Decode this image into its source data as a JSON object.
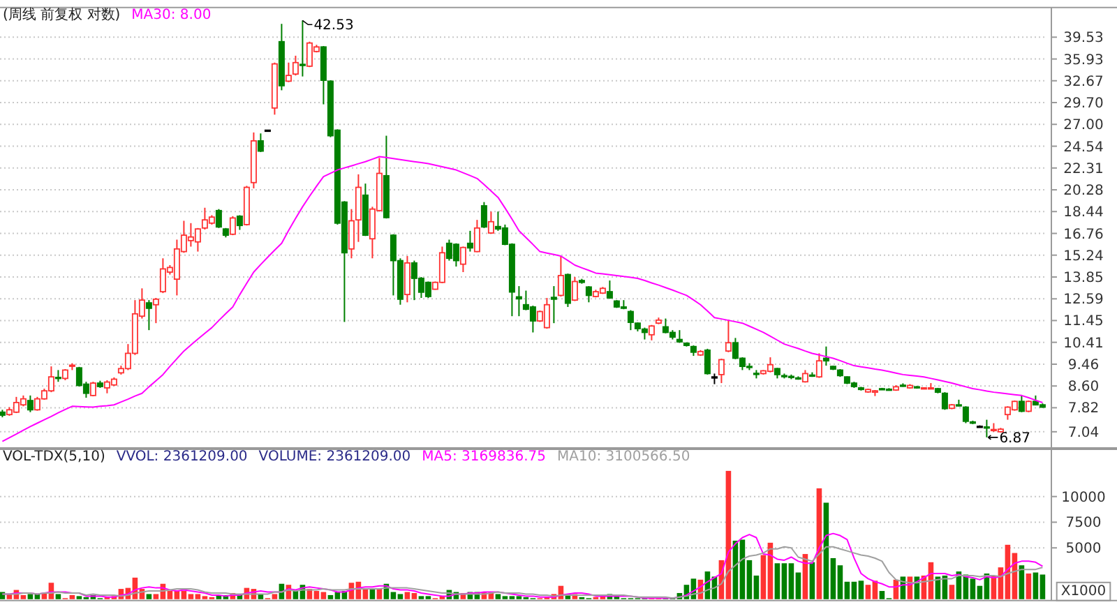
{
  "chart_data": [
    {
      "type": "candlestick",
      "title": "(周线 前复权 对数)",
      "log": "y",
      "grid": "y",
      "legend": "top left",
      "ylim": [
        6.6,
        45
      ],
      "yticks": [
        7.04,
        7.82,
        {
          "value": 8.6,
          "label": "8.60"
        },
        9.46,
        10.41,
        11.45,
        12.59,
        13.85,
        15.24,
        16.76,
        18.44,
        20.28,
        22.31,
        24.54,
        {
          "value": 27,
          "label": "27.00"
        },
        {
          "value": 29.7,
          "label": "29.70"
        },
        32.67,
        35.93,
        39.53
      ],
      "annotations": [
        "42.53",
        "6.87"
      ],
      "categories": [
        null,
        null,
        null,
        null,
        null,
        null,
        null,
        null,
        null,
        null,
        null,
        null,
        null,
        null,
        null,
        null,
        null,
        null,
        null,
        null,
        null,
        null,
        null,
        null,
        null,
        null,
        null,
        null,
        null,
        null,
        null,
        null,
        null,
        null,
        null,
        null,
        null,
        null,
        null,
        null,
        null,
        null,
        null,
        null,
        null,
        null,
        null,
        null,
        null,
        null,
        null,
        null,
        null,
        null,
        null,
        null,
        null,
        null,
        null,
        null,
        null,
        null,
        null,
        null,
        null,
        null,
        null,
        null,
        null,
        null,
        null,
        null,
        null,
        null,
        null,
        null,
        null,
        null,
        null,
        null,
        null,
        null,
        null,
        null,
        null,
        null,
        null,
        null,
        null,
        null,
        null,
        null,
        null,
        null,
        null,
        null,
        null,
        null,
        null,
        null,
        null,
        null,
        null,
        null,
        null,
        null,
        null,
        null,
        null,
        null,
        null,
        null,
        null,
        null,
        null,
        null,
        null,
        null,
        null,
        null,
        null,
        null,
        null,
        null,
        null,
        null,
        null,
        null,
        null,
        null,
        null,
        null,
        null,
        null,
        null,
        null,
        null,
        null,
        null,
        null,
        null,
        null,
        null,
        null,
        null,
        null,
        null,
        null,
        null,
        null
      ],
      "ohlc": [
        [
          7.67,
          7.75,
          7.5,
          7.57
        ],
        [
          7.59,
          7.84,
          7.55,
          7.75
        ],
        [
          7.67,
          8.2,
          7.64,
          8.0
        ],
        [
          7.92,
          8.25,
          7.87,
          8.13
        ],
        [
          8.07,
          8.25,
          7.67,
          7.75
        ],
        [
          7.75,
          8.2,
          7.72,
          8.13
        ],
        [
          8.13,
          8.5,
          8.1,
          8.42
        ],
        [
          8.42,
          9.37,
          8.37,
          8.95
        ],
        [
          8.93,
          9.22,
          8.76,
          8.89
        ],
        [
          8.89,
          9.26,
          8.82,
          9.22
        ],
        [
          9.39,
          9.5,
          9.22,
          9.42
        ],
        [
          9.31,
          9.35,
          8.58,
          8.62
        ],
        [
          8.67,
          8.76,
          8.17,
          8.33
        ],
        [
          8.25,
          8.76,
          8.22,
          8.71
        ],
        [
          8.71,
          8.8,
          8.53,
          8.58
        ],
        [
          8.53,
          8.82,
          8.33,
          8.75
        ],
        [
          8.64,
          8.93,
          8.6,
          8.86
        ],
        [
          9.11,
          9.4,
          9.04,
          9.28
        ],
        [
          9.28,
          10.33,
          9.22,
          9.92
        ],
        [
          9.92,
          12.52,
          9.85,
          11.79
        ],
        [
          11.67,
          13.18,
          11.55,
          12.52
        ],
        [
          12.37,
          12.52,
          10.98,
          12.08
        ],
        [
          12.27,
          12.64,
          11.32,
          12.57
        ],
        [
          12.99,
          15.03,
          12.91,
          14.35
        ],
        [
          14.15,
          14.59,
          14.0,
          14.44
        ],
        [
          13.72,
          16.31,
          12.78,
          15.66
        ],
        [
          15.48,
          17.71,
          15.4,
          16.63
        ],
        [
          16.24,
          17.53,
          15.82,
          16.5
        ],
        [
          16.15,
          17.16,
          15.48,
          17.09
        ],
        [
          17.16,
          18.75,
          17.05,
          17.78
        ],
        [
          17.53,
          18.15,
          17.42,
          18.0
        ],
        [
          18.52,
          18.64,
          17.16,
          17.24
        ],
        [
          17.09,
          17.16,
          16.47,
          16.63
        ],
        [
          16.7,
          18.07,
          16.63,
          17.93
        ],
        [
          18.07,
          18.15,
          17.02,
          17.35
        ],
        [
          17.42,
          20.63,
          17.35,
          20.5
        ],
        [
          20.93,
          26.06,
          20.41,
          25.12
        ],
        [
          25.12,
          25.95,
          23.92,
          24.02
        ],
        [
          26.32,
          26.32,
          26.32,
          26.32
        ],
        [
          29.0,
          35.37,
          28.17,
          35.17
        ],
        [
          38.76,
          41.9,
          31.34,
          31.97
        ],
        [
          32.61,
          35.37,
          32.48,
          33.44
        ],
        [
          33.64,
          36.45,
          33.44,
          35.37
        ],
        [
          35.1,
          42.53,
          33.29,
          34.96
        ],
        [
          34.82,
          38.76,
          34.68,
          38.53
        ],
        [
          37.13,
          38.23,
          36.98,
          37.88
        ],
        [
          37.88,
          38.03,
          29.47,
          32.74
        ],
        [
          32.61,
          32.74,
          25.53,
          25.69
        ],
        [
          26.32,
          26.42,
          17.42,
          17.53
        ],
        [
          19.22,
          19.3,
          11.38,
          15.4
        ],
        [
          15.66,
          18.64,
          15.03,
          17.71
        ],
        [
          17.78,
          21.7,
          16.15,
          20.5
        ],
        [
          19.81,
          20.84,
          16.57,
          16.63
        ],
        [
          16.37,
          18.83,
          15.03,
          18.64
        ],
        [
          18.52,
          23.31,
          18.44,
          21.79
        ],
        [
          21.57,
          25.69,
          17.89,
          17.96
        ],
        [
          16.63,
          16.7,
          12.78,
          14.88
        ],
        [
          14.88,
          15.03,
          12.27,
          12.57
        ],
        [
          12.83,
          15.18,
          12.4,
          14.73
        ],
        [
          14.73,
          14.88,
          12.52,
          13.77
        ],
        [
          13.77,
          13.85,
          12.64,
          12.96
        ],
        [
          13.53,
          13.58,
          12.64,
          12.72
        ],
        [
          13.13,
          13.58,
          13.1,
          13.53
        ],
        [
          13.53,
          15.82,
          13.48,
          15.4
        ],
        [
          16.05,
          16.31,
          14.88,
          15.03
        ],
        [
          15.98,
          16.05,
          14.5,
          14.88
        ],
        [
          14.65,
          15.82,
          14.15,
          15.76
        ],
        [
          16.05,
          16.95,
          15.48,
          15.73
        ],
        [
          15.48,
          17.78,
          15.44,
          17.16
        ],
        [
          18.91,
          19.22,
          17.16,
          17.24
        ],
        [
          16.79,
          18.44,
          16.73,
          17.64
        ],
        [
          17.27,
          18.44,
          16.95,
          17.09
        ],
        [
          17.16,
          17.42,
          15.92,
          15.98
        ],
        [
          15.98,
          16.05,
          11.67,
          12.97
        ],
        [
          12.7,
          13.31,
          11.67,
          12.59
        ],
        [
          12.27,
          13.05,
          11.98,
          12.03
        ],
        [
          12.15,
          12.22,
          10.87,
          11.43
        ],
        [
          11.43,
          11.96,
          11.38,
          11.91
        ],
        [
          11.1,
          12.64,
          11.05,
          12.27
        ],
        [
          12.67,
          13.31,
          11.32,
          12.57
        ],
        [
          12.78,
          15.18,
          12.72,
          13.94
        ],
        [
          14.0,
          14.06,
          12.15,
          12.35
        ],
        [
          12.52,
          13.85,
          12.47,
          13.58
        ],
        [
          13.64,
          13.74,
          13.45,
          13.53
        ],
        [
          13.26,
          13.31,
          12.4,
          12.78
        ],
        [
          12.72,
          13.1,
          12.67,
          12.99
        ],
        [
          12.91,
          13.26,
          12.86,
          13.18
        ],
        [
          12.99,
          13.64,
          12.59,
          12.64
        ],
        [
          12.47,
          12.52,
          12.1,
          12.15
        ],
        [
          12.15,
          12.52,
          12.03,
          12.08
        ],
        [
          11.91,
          11.98,
          10.98,
          11.36
        ],
        [
          11.32,
          11.36,
          10.92,
          11.05
        ],
        [
          11.03,
          11.1,
          10.54,
          10.87
        ],
        [
          10.76,
          11.23,
          10.5,
          11.18
        ],
        [
          11.32,
          11.6,
          11.27,
          11.47
        ],
        [
          11.14,
          11.55,
          10.83,
          10.87
        ],
        [
          10.87,
          10.98,
          10.54,
          10.65
        ],
        [
          10.54,
          10.98,
          10.39,
          10.43
        ],
        [
          10.37,
          10.41,
          10.22,
          10.27
        ],
        [
          10.22,
          10.27,
          9.81,
          9.97
        ],
        [
          9.85,
          10.06,
          9.81,
          10.0
        ],
        [
          10.06,
          10.12,
          9.04,
          9.08
        ],
        [
          8.95,
          9.08,
          8.67,
          8.95
        ],
        [
          9.04,
          9.69,
          8.71,
          9.65
        ],
        [
          10.02,
          11.5,
          9.97,
          10.39
        ],
        [
          10.39,
          10.61,
          9.67,
          9.71
        ],
        [
          9.71,
          9.75,
          9.22,
          9.37
        ],
        [
          9.37,
          9.5,
          9.22,
          9.33
        ],
        [
          9.09,
          9.22,
          8.89,
          9.06
        ],
        [
          9.08,
          9.22,
          9.04,
          9.19
        ],
        [
          9.17,
          9.75,
          9.13,
          9.44
        ],
        [
          9.28,
          9.31,
          8.89,
          9.04
        ],
        [
          9.0,
          9.08,
          8.89,
          8.97
        ],
        [
          8.97,
          9.04,
          8.86,
          8.93
        ],
        [
          8.91,
          8.97,
          8.84,
          8.89
        ],
        [
          8.76,
          9.22,
          8.73,
          9.08
        ],
        [
          9.02,
          9.13,
          8.95,
          9.0
        ],
        [
          8.95,
          9.92,
          8.91,
          9.6
        ],
        [
          9.71,
          10.22,
          9.4,
          9.6
        ],
        [
          9.37,
          9.4,
          9.22,
          9.26
        ],
        [
          9.22,
          9.26,
          8.95,
          9.0
        ],
        [
          8.95,
          8.97,
          8.67,
          8.71
        ],
        [
          8.71,
          8.76,
          8.53,
          8.58
        ],
        [
          8.53,
          8.57,
          8.43,
          8.47
        ],
        [
          8.38,
          8.5,
          8.35,
          8.47
        ],
        [
          8.37,
          8.45,
          8.23,
          8.42
        ],
        [
          8.5,
          8.53,
          8.45,
          8.48
        ],
        [
          8.48,
          8.52,
          8.43,
          8.47
        ],
        [
          8.45,
          8.63,
          8.42,
          8.57
        ],
        [
          8.63,
          8.7,
          8.57,
          8.62
        ],
        [
          8.53,
          8.67,
          8.5,
          8.62
        ],
        [
          8.57,
          8.6,
          8.5,
          8.53
        ],
        [
          8.5,
          8.55,
          8.48,
          8.53
        ],
        [
          8.5,
          8.71,
          8.48,
          8.53
        ],
        [
          8.5,
          8.53,
          8.33,
          8.37
        ],
        [
          8.33,
          8.37,
          7.75,
          7.79
        ],
        [
          7.8,
          7.95,
          7.77,
          7.92
        ],
        [
          7.92,
          8.1,
          7.87,
          7.89
        ],
        [
          7.84,
          7.87,
          7.31,
          7.37
        ],
        [
          7.35,
          7.39,
          7.28,
          7.31
        ],
        [
          7.21,
          7.24,
          7.18,
          7.21
        ],
        [
          7.19,
          7.42,
          6.87,
          7.17
        ],
        [
          7.08,
          7.31,
          7.04,
          7.11
        ],
        [
          7.04,
          7.16,
          7.02,
          7.12
        ],
        [
          7.59,
          7.87,
          7.42,
          7.84
        ],
        [
          7.75,
          8.07,
          7.72,
          8.04
        ],
        [
          8.04,
          8.25,
          7.67,
          7.7
        ],
        [
          7.7,
          8.07,
          7.67,
          8.04
        ],
        [
          8.04,
          8.25,
          7.9,
          7.92
        ],
        [
          7.92,
          7.97,
          7.82,
          7.84
        ]
      ],
      "series": [
        {
          "name": "MA30: 8.00",
          "type": "line",
          "color": "#ff00ff",
          "values": [
            6.75,
            6.86,
            6.97,
            7.09,
            7.2,
            7.31,
            7.42,
            7.53,
            7.65,
            7.76,
            7.87,
            7.86,
            7.85,
            7.84,
            7.87,
            7.89,
            7.92,
            8.02,
            8.12,
            8.23,
            8.33,
            8.57,
            8.8,
            9.04,
            9.37,
            9.69,
            10.02,
            10.29,
            10.56,
            10.83,
            11.1,
            11.45,
            11.8,
            12.15,
            12.82,
            13.48,
            14.15,
            14.63,
            15.1,
            15.58,
            16.05,
            16.98,
            17.9,
            18.83,
            19.72,
            20.6,
            21.49,
            21.8,
            22.12,
            22.32,
            22.52,
            22.73,
            22.93,
            23.19,
            23.45,
            23.35,
            23.25,
            23.15,
            23.04,
            22.94,
            22.84,
            22.74,
            22.59,
            22.43,
            22.28,
            22.12,
            21.85,
            21.58,
            21.31,
            20.75,
            20.18,
            19.62,
            18.73,
            17.84,
            16.95,
            16.46,
            15.97,
            15.48,
            15.38,
            15.28,
            15.18,
            14.89,
            14.59,
            14.42,
            14.26,
            14.09,
            14.04,
            13.99,
            13.94,
            13.88,
            13.83,
            13.77,
            13.64,
            13.5,
            13.37,
            13.22,
            13.08,
            12.93,
            12.78,
            12.53,
            12.27,
            11.94,
            11.6,
            11.53,
            11.46,
            11.39,
            11.32,
            11.17,
            11.02,
            10.87,
            10.69,
            10.51,
            10.33,
            10.23,
            10.13,
            10.02,
            9.92,
            9.85,
            9.78,
            9.71,
            9.61,
            9.5,
            9.4,
            9.35,
            9.31,
            9.26,
            9.22,
            9.16,
            9.1,
            9.04,
            9.01,
            8.98,
            8.95,
            8.89,
            8.83,
            8.77,
            8.71,
            8.64,
            8.57,
            8.5,
            8.46,
            8.41,
            8.37,
            8.34,
            8.31,
            8.28,
            8.25,
            8.17,
            8.08,
            8.0
          ]
        }
      ]
    },
    {
      "type": "bar",
      "title": "VOL-TDX(5,10)",
      "ylabel": "X1000",
      "grid": "y",
      "legend": "top left",
      "ylim": [
        0,
        14600
      ],
      "yticks": [
        5000,
        7500,
        10000
      ],
      "annotations": [
        "VVOL: 2361209.00",
        "VOLUME: 2361209.00"
      ],
      "categories": [
        null,
        null,
        null,
        null,
        null,
        null,
        null,
        null,
        null,
        null,
        null,
        null,
        null,
        null,
        null,
        null,
        null,
        null,
        null,
        null,
        null,
        null,
        null,
        null,
        null,
        null,
        null,
        null,
        null,
        null,
        null,
        null,
        null,
        null,
        null,
        null,
        null,
        null,
        null,
        null,
        null,
        null,
        null,
        null,
        null,
        null,
        null,
        null,
        null,
        null,
        null,
        null,
        null,
        null,
        null,
        null,
        null,
        null,
        null,
        null,
        null,
        null,
        null,
        null,
        null,
        null,
        null,
        null,
        null,
        null,
        null,
        null,
        null,
        null,
        null,
        null,
        null,
        null,
        null,
        null,
        null,
        null,
        null,
        null,
        null,
        null,
        null,
        null,
        null,
        null,
        null,
        null,
        null,
        null,
        null,
        null,
        null,
        null,
        null,
        null,
        null,
        null,
        null,
        null,
        null,
        null,
        null,
        null,
        null,
        null,
        null,
        null,
        null,
        null,
        null,
        null,
        null,
        null,
        null,
        null,
        null,
        null,
        null,
        null,
        null,
        null,
        null,
        null,
        null,
        null,
        null,
        null,
        null,
        null,
        null,
        null,
        null,
        null,
        null,
        null,
        null,
        null,
        null,
        null,
        null,
        null,
        null,
        null,
        null,
        null
      ],
      "series": [
        {
          "type": "bar",
          "values": [
            700,
            500,
            900,
            400,
            500,
            500,
            600,
            1600,
            500,
            100,
            400,
            300,
            200,
            400,
            100,
            200,
            300,
            1000,
            1100,
            2100,
            1000,
            500,
            500,
            1500,
            800,
            800,
            800,
            500,
            500,
            300,
            200,
            400,
            400,
            600,
            500,
            1100,
            1000,
            500,
            100,
            500,
            1500,
            1400,
            800,
            1400,
            1000,
            800,
            700,
            400,
            700,
            800,
            1600,
            1700,
            1000,
            1000,
            1000,
            1500,
            700,
            500,
            700,
            600,
            300,
            300,
            100,
            300,
            900,
            700,
            600,
            700,
            700,
            700,
            700,
            500,
            300,
            300,
            300,
            200,
            100,
            100,
            200,
            500,
            1300,
            400,
            500,
            200,
            100,
            200,
            300,
            500,
            300,
            100,
            100,
            100,
            100,
            100,
            100,
            100,
            100,
            600,
            1400,
            2000,
            1900,
            2700,
            2200,
            3800,
            12500,
            5700,
            5800,
            3800,
            2300,
            4300,
            5500,
            3500,
            3500,
            3500,
            2600,
            4400,
            3600,
            10800,
            9400,
            4000,
            3300,
            1700,
            1700,
            1800,
            1400,
            1800,
            800,
            100,
            1900,
            2200,
            2200,
            2200,
            2300,
            3600,
            2200,
            2300,
            1400,
            2700,
            2400,
            2000,
            1300,
            2500,
            2300,
            3100,
            5300,
            4500,
            3300,
            2500,
            2600,
            2400
          ],
          "colors": [
            "#008000",
            "#ff3232",
            "#ff3232",
            "#ff3232",
            "#008000",
            "#008000",
            "#ff3232",
            "#ff3232",
            "#008000",
            "#ff3232",
            "#ff3232",
            "#008000",
            "#008000",
            "#008000",
            "#008000",
            "#ff3232",
            "#ff3232",
            "#ff3232",
            "#ff3232",
            "#ff3232",
            "#ff3232",
            "#008000",
            "#ff3232",
            "#ff3232",
            "#ff3232",
            "#ff3232",
            "#ff3232",
            "#ff3232",
            "#ff3232",
            "#ff3232",
            "#ff3232",
            "#008000",
            "#008000",
            "#ff3232",
            "#008000",
            "#ff3232",
            "#ff3232",
            "#008000",
            "#ff3232",
            "#ff3232",
            "#008000",
            "#ff3232",
            "#008000",
            "#008000",
            "#ff3232",
            "#ff3232",
            "#ff3232",
            "#008000",
            "#008000",
            "#008000",
            "#ff3232",
            "#ff3232",
            "#ff3232",
            "#008000",
            "#ff3232",
            "#008000",
            "#008000",
            "#008000",
            "#ff3232",
            "#ff3232",
            "#008000",
            "#008000",
            "#ff3232",
            "#ff3232",
            "#008000",
            "#008000",
            "#ff3232",
            "#008000",
            "#008000",
            "#ff3232",
            "#ff3232",
            "#008000",
            "#008000",
            "#008000",
            "#008000",
            "#008000",
            "#008000",
            "#ff3232",
            "#ff3232",
            "#ff3232",
            "#ff3232",
            "#008000",
            "#ff3232",
            "#008000",
            "#008000",
            "#ff3232",
            "#ff3232",
            "#008000",
            "#008000",
            "#008000",
            "#008000",
            "#008000",
            "#008000",
            "#ff3232",
            "#ff3232",
            "#008000",
            "#008000",
            "#008000",
            "#008000",
            "#008000",
            "#ff3232",
            "#008000",
            "#008000",
            "#ff3232",
            "#ff3232",
            "#008000",
            "#008000",
            "#008000",
            "#008000",
            "#ff3232",
            "#ff3232",
            "#008000",
            "#008000",
            "#008000",
            "#008000",
            "#ff3232",
            "#008000",
            "#ff3232",
            "#008000",
            "#008000",
            "#008000",
            "#008000",
            "#008000",
            "#008000",
            "#ff3232",
            "#ff3232",
            "#008000",
            "#008000",
            "#ff3232",
            "#008000",
            "#ff3232",
            "#008000",
            "#ff3232",
            "#ff3232",
            "#008000",
            "#008000",
            "#ff3232",
            "#008000",
            "#008000",
            "#008000",
            "#008000",
            "#008000",
            "#ff3232",
            "#ff3232",
            "#ff3232",
            "#ff3232",
            "#008000",
            "#ff3232",
            "#008000",
            "#008000"
          ]
        },
        {
          "name": "MA5: 3169836.75",
          "type": "line",
          "color": "#ff00ff",
          "values": [
            500,
            500,
            600,
            600,
            600,
            500,
            600,
            700,
            700,
            700,
            600,
            600,
            300,
            300,
            300,
            200,
            200,
            400,
            500,
            900,
            1100,
            1200,
            1100,
            1100,
            900,
            800,
            900,
            800,
            700,
            600,
            400,
            400,
            300,
            400,
            400,
            600,
            700,
            800,
            700,
            700,
            700,
            1000,
            900,
            1100,
            1200,
            1100,
            1000,
            900,
            700,
            700,
            900,
            1100,
            1200,
            1200,
            1300,
            1300,
            1000,
            900,
            900,
            800,
            600,
            500,
            400,
            300,
            300,
            500,
            500,
            600,
            600,
            700,
            700,
            700,
            600,
            500,
            400,
            300,
            300,
            200,
            200,
            200,
            400,
            500,
            600,
            600,
            500,
            300,
            300,
            300,
            300,
            300,
            300,
            200,
            100,
            100,
            100,
            100,
            100,
            200,
            400,
            800,
            1200,
            1700,
            2100,
            2500,
            4600,
            5400,
            6000,
            6300,
            6000,
            4400,
            4300,
            3900,
            3800,
            4100,
            3700,
            3500,
            3500,
            5000,
            6200,
            6400,
            6200,
            5800,
            4000,
            2500,
            2000,
            1700,
            1500,
            1200,
            1200,
            1400,
            1400,
            1700,
            2100,
            2500,
            2500,
            2500,
            2300,
            2400,
            2200,
            2100,
            1900,
            2200,
            2100,
            2200,
            2900,
            3500,
            3700,
            3700,
            3600,
            3200
          ]
        },
        {
          "name": "MA10: 3100566.50",
          "type": "line",
          "color": "#a0a0a0",
          "values": [
            500,
            500,
            500,
            600,
            600,
            500,
            600,
            600,
            700,
            600,
            600,
            600,
            400,
            500,
            400,
            400,
            400,
            300,
            400,
            600,
            700,
            800,
            800,
            800,
            900,
            1000,
            1000,
            1000,
            900,
            700,
            600,
            600,
            600,
            500,
            500,
            500,
            500,
            500,
            500,
            700,
            700,
            900,
            800,
            900,
            900,
            900,
            1000,
            900,
            900,
            900,
            1000,
            1000,
            1000,
            1000,
            1000,
            1100,
            1100,
            1100,
            1100,
            1000,
            900,
            800,
            700,
            600,
            600,
            500,
            500,
            500,
            500,
            500,
            600,
            700,
            600,
            600,
            600,
            500,
            500,
            400,
            400,
            300,
            400,
            400,
            400,
            400,
            400,
            400,
            400,
            400,
            400,
            400,
            300,
            200,
            200,
            200,
            200,
            200,
            100,
            200,
            300,
            500,
            600,
            900,
            1100,
            1500,
            2700,
            3300,
            3900,
            4200,
            4300,
            4500,
            4900,
            4900,
            5100,
            5000,
            4100,
            3900,
            3700,
            4400,
            5100,
            5100,
            4900,
            4700,
            4500,
            4300,
            4200,
            4000,
            3700,
            2600,
            1900,
            1700,
            1600,
            1600,
            1700,
            1800,
            1900,
            2000,
            2000,
            2300,
            2300,
            2300,
            2200,
            2300,
            2300,
            2200,
            2500,
            2700,
            2900,
            2900,
            2900,
            3100
          ]
        }
      ]
    }
  ]
}
